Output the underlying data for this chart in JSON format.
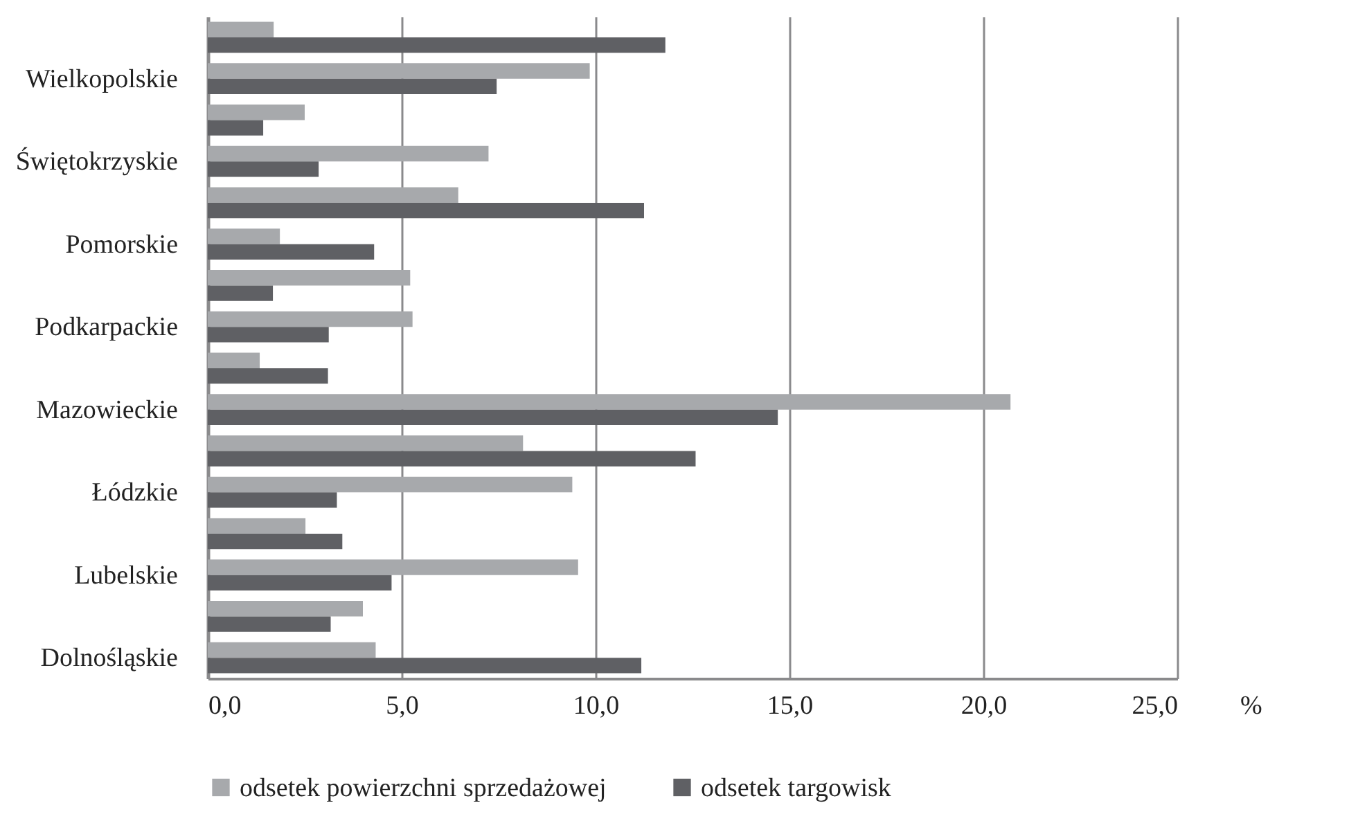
{
  "chart_data": {
    "type": "bar",
    "orientation": "horizontal",
    "xlabel": "%",
    "categories": [
      null,
      "Wielkopolskie",
      null,
      "Świętokrzyskie",
      null,
      "Pomorskie",
      null,
      "Podkarpackie",
      null,
      "Mazowieckie",
      null,
      "Łódzkie",
      null,
      "Lubelskie",
      null,
      "Dolnośląskie"
    ],
    "series": [
      {
        "name": "odsetek  powierzchni sprzedażowej",
        "color": "#a7a9ac",
        "values": [
          1.7,
          9.85,
          2.5,
          7.24,
          6.46,
          1.86,
          5.22,
          5.28,
          1.34,
          20.7,
          8.13,
          9.4,
          2.52,
          9.55,
          4.0,
          4.33
        ]
      },
      {
        "name": "odsetek targowisk",
        "color": "#5f6064",
        "values": [
          11.8,
          7.45,
          1.43,
          2.86,
          11.25,
          4.29,
          1.68,
          3.12,
          3.1,
          14.7,
          12.58,
          3.33,
          3.47,
          4.74,
          3.17,
          11.18
        ]
      }
    ],
    "xlim": [
      0,
      25
    ],
    "xticks": [
      {
        "value": 0,
        "label": "0,0"
      },
      {
        "value": 5,
        "label": "5,0"
      },
      {
        "value": 10,
        "label": "10,0"
      },
      {
        "value": 15,
        "label": "15,0"
      },
      {
        "value": 20,
        "label": "20,0"
      },
      {
        "value": 25,
        "label": "25,0"
      }
    ],
    "grid": "x",
    "legend": "bottom"
  }
}
